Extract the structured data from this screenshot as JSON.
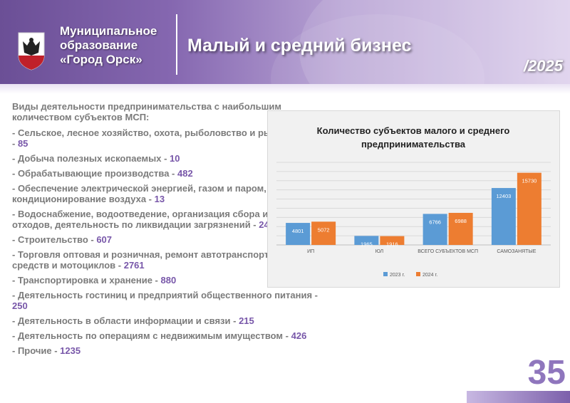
{
  "header": {
    "org_line1": "Муниципальное",
    "org_line2": "образование",
    "org_line3": "«Город Орск»",
    "title": "Малый и средний бизнес",
    "year": "/2025"
  },
  "content": {
    "intro": "Виды деятельности  предпринимательства с наибольшим количеством субъектов МСП:",
    "items": [
      {
        "label": "- Сельское, лесное хозяйство, охота, рыболовство и рыбоводство - ",
        "value": "85"
      },
      {
        "label": "- Добыча полезных ископаемых - ",
        "value": "10"
      },
      {
        "label": "- Обрабатывающие производства - ",
        "value": "482"
      },
      {
        "label": "- Обеспечение электрической энергией, газом и паром, кондиционирование воздуха - ",
        "value": "13"
      },
      {
        "label": "- Водоснабжение, водоотведение, организация сбора и утилизация отходов, деятельность по ликвидации загрязнений - ",
        "value": "24"
      },
      {
        "label": "- Строительство - ",
        "value": "607"
      },
      {
        "label": "- Торговля оптовая и розничная, ремонт автотранспортных средств и мотоциклов - ",
        "value": "2761"
      },
      {
        "label": "- Транспортировка и хранение - ",
        "value": "880"
      },
      {
        "label": "- Деятельность гостиниц и предприятий общественного питания - ",
        "value": "250"
      },
      {
        "label": "- Деятельность в области информации и связи - ",
        "value": "215"
      },
      {
        "label": "- Деятельность по операциям с недвижимым имуществом - ",
        "value": "426"
      },
      {
        "label": "- Прочие - ",
        "value": "1235"
      }
    ]
  },
  "chart_data": {
    "type": "bar",
    "title": "Количество субъектов малого и среднего предпринимательства",
    "categories": [
      "ИП",
      "ЮЛ",
      "ВСЕГО СУБЪЕКТОВ МСП",
      "САМОЗАНЯТЫЕ"
    ],
    "series": [
      {
        "name": "2023 г.",
        "values": [
          4801,
          1965,
          6766,
          12403
        ],
        "color": "#5b9bd5"
      },
      {
        "name": "2024 г.",
        "values": [
          5072,
          1916,
          6988,
          15730
        ],
        "color": "#ed7d31"
      }
    ],
    "ylim": [
      0,
      18000
    ],
    "grid": true,
    "legend": "bottom"
  },
  "colors": {
    "accent": "#7857a9",
    "text": "#7b7b7b"
  },
  "page_number": "35"
}
